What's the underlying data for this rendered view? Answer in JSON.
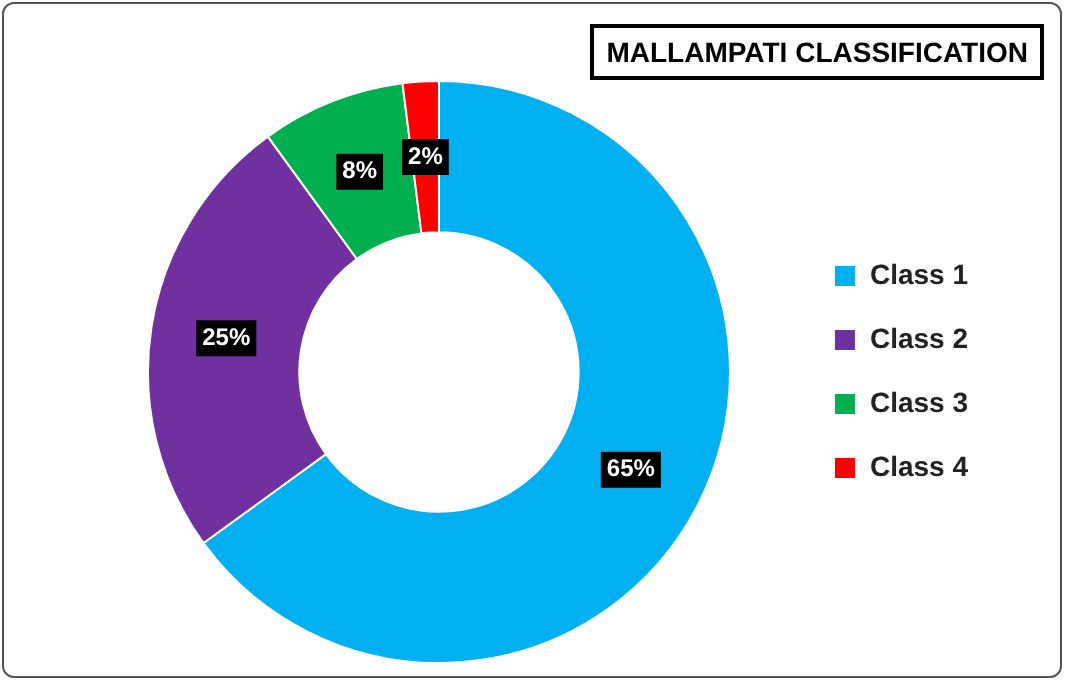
{
  "chart_data": {
    "type": "donut",
    "title": "MALLAMPATI CLASSIFICATION",
    "categories": [
      "Class 1",
      "Class 2",
      "Class 3",
      "Class 4"
    ],
    "values": [
      65,
      25,
      8,
      2
    ],
    "value_labels": [
      "65%",
      "25%",
      "8%",
      "2%"
    ],
    "colors": [
      "#00b0f0",
      "#7030a0",
      "#00b050",
      "#ff0000"
    ],
    "legend": "right"
  }
}
